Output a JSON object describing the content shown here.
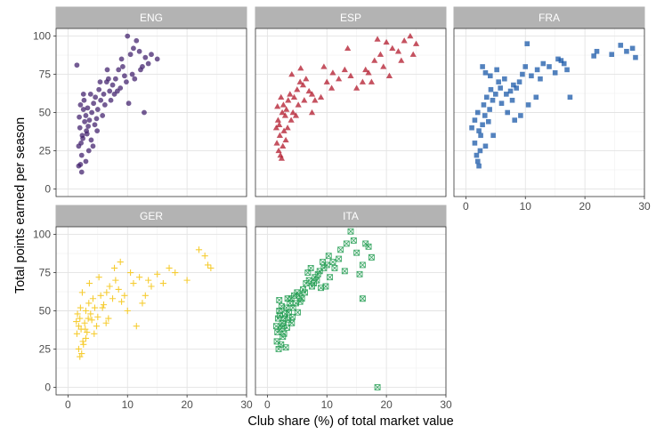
{
  "chart_data": {
    "type": "scatter",
    "layout": "facet_wrap",
    "xlabel": "Club share (%) of total market value",
    "ylabel": "Total points earned per season",
    "xlim": [
      -2,
      30
    ],
    "ylim": [
      -5,
      105
    ],
    "x_ticks": [
      0,
      10,
      20,
      30
    ],
    "y_ticks": [
      0,
      25,
      50,
      75,
      100
    ],
    "grid": true,
    "shared_axes": true,
    "panels": [
      {
        "name": "ENG",
        "shape": "circle",
        "color": "#3f1d6b",
        "points": [
          [
            2.0,
            40
          ],
          [
            2.4,
            35
          ],
          [
            2.8,
            44
          ],
          [
            3.1,
            38
          ],
          [
            1.9,
            47
          ],
          [
            2.6,
            52
          ],
          [
            3.4,
            41
          ],
          [
            2.2,
            30
          ],
          [
            1.8,
            28
          ],
          [
            2.5,
            33
          ],
          [
            3.0,
            48
          ],
          [
            3.6,
            45
          ],
          [
            2.1,
            55
          ],
          [
            2.7,
            58
          ],
          [
            3.2,
            36
          ],
          [
            4.0,
            50
          ],
          [
            4.3,
            56
          ],
          [
            3.8,
            62
          ],
          [
            4.6,
            60
          ],
          [
            5.0,
            52
          ],
          [
            5.2,
            65
          ],
          [
            4.8,
            46
          ],
          [
            3.5,
            25
          ],
          [
            2.3,
            22
          ],
          [
            2.1,
            16
          ],
          [
            1.8,
            15
          ],
          [
            2.3,
            11
          ],
          [
            3.0,
            18
          ],
          [
            4.2,
            28
          ],
          [
            5.5,
            58
          ],
          [
            6.0,
            62
          ],
          [
            6.5,
            70
          ],
          [
            7.0,
            64
          ],
          [
            7.5,
            68
          ],
          [
            8.0,
            72
          ],
          [
            8.5,
            78
          ],
          [
            9.0,
            85
          ],
          [
            9.5,
            74
          ],
          [
            10.0,
            100
          ],
          [
            10.5,
            88
          ],
          [
            11.0,
            92
          ],
          [
            11.5,
            97
          ],
          [
            12.0,
            90
          ],
          [
            12.5,
            80
          ],
          [
            13.0,
            86
          ],
          [
            13.5,
            82
          ],
          [
            14.0,
            88
          ],
          [
            15.0,
            85
          ],
          [
            6.2,
            55
          ],
          [
            7.2,
            58
          ],
          [
            8.8,
            66
          ],
          [
            9.8,
            70
          ],
          [
            10.8,
            75
          ],
          [
            3.3,
            53
          ],
          [
            4.5,
            42
          ],
          [
            5.8,
            48
          ],
          [
            6.8,
            72
          ],
          [
            7.8,
            62
          ],
          [
            8.3,
            64
          ],
          [
            12.8,
            50
          ],
          [
            10.2,
            56
          ],
          [
            2.6,
            62
          ],
          [
            3.9,
            32
          ],
          [
            4.9,
            38
          ],
          [
            1.5,
            81
          ],
          [
            11.2,
            72
          ],
          [
            12.2,
            78
          ],
          [
            9.2,
            80
          ],
          [
            5.4,
            70
          ],
          [
            6.6,
            78
          ]
        ]
      },
      {
        "name": "ESP",
        "shape": "triangle",
        "color": "#b1182b",
        "points": [
          [
            1.5,
            40
          ],
          [
            1.8,
            45
          ],
          [
            2.1,
            35
          ],
          [
            2.5,
            50
          ],
          [
            2.0,
            42
          ],
          [
            2.8,
            38
          ],
          [
            1.6,
            30
          ],
          [
            1.9,
            25
          ],
          [
            2.2,
            22
          ],
          [
            2.4,
            20
          ],
          [
            3.0,
            48
          ],
          [
            3.2,
            52
          ],
          [
            3.5,
            58
          ],
          [
            2.7,
            55
          ],
          [
            3.8,
            62
          ],
          [
            4.0,
            45
          ],
          [
            4.5,
            60
          ],
          [
            5.0,
            65
          ],
          [
            5.5,
            70
          ],
          [
            6.0,
            68
          ],
          [
            6.5,
            72
          ],
          [
            7.0,
            64
          ],
          [
            7.5,
            62
          ],
          [
            8.0,
            58
          ],
          [
            9.0,
            60
          ],
          [
            10.0,
            70
          ],
          [
            11.0,
            76
          ],
          [
            12.0,
            72
          ],
          [
            13.0,
            78
          ],
          [
            14.0,
            74
          ],
          [
            15.0,
            66
          ],
          [
            16.0,
            70
          ],
          [
            17.0,
            76
          ],
          [
            18.0,
            84
          ],
          [
            19.0,
            88
          ],
          [
            20.0,
            96
          ],
          [
            21.0,
            92
          ],
          [
            22.0,
            90
          ],
          [
            23.0,
            97
          ],
          [
            24.0,
            100
          ],
          [
            24.5,
            88
          ],
          [
            25.0,
            95
          ],
          [
            18.5,
            98
          ],
          [
            19.5,
            80
          ],
          [
            22.5,
            84
          ],
          [
            3.4,
            40
          ],
          [
            4.3,
            50
          ],
          [
            5.2,
            55
          ],
          [
            6.2,
            58
          ],
          [
            3.1,
            32
          ],
          [
            2.6,
            28
          ],
          [
            4.8,
            48
          ],
          [
            9.5,
            80
          ],
          [
            10.8,
            66
          ],
          [
            13.5,
            92
          ],
          [
            16.5,
            78
          ],
          [
            17.5,
            70
          ],
          [
            20.5,
            74
          ],
          [
            7.5,
            50
          ],
          [
            4.1,
            75
          ],
          [
            5.6,
            79
          ],
          [
            2.3,
            60
          ],
          [
            1.7,
            54
          ]
        ]
      },
      {
        "name": "FRA",
        "shape": "square",
        "color": "#1958a8",
        "points": [
          [
            1.0,
            40
          ],
          [
            1.5,
            45
          ],
          [
            2.0,
            50
          ],
          [
            2.2,
            38
          ],
          [
            2.5,
            35
          ],
          [
            2.8,
            42
          ],
          [
            3.0,
            55
          ],
          [
            3.2,
            48
          ],
          [
            3.5,
            60
          ],
          [
            3.8,
            44
          ],
          [
            4.0,
            52
          ],
          [
            4.2,
            65
          ],
          [
            4.5,
            58
          ],
          [
            5.0,
            62
          ],
          [
            5.5,
            70
          ],
          [
            6.0,
            56
          ],
          [
            6.5,
            72
          ],
          [
            7.0,
            50
          ],
          [
            7.5,
            64
          ],
          [
            8.0,
            68
          ],
          [
            8.5,
            66
          ],
          [
            9.0,
            70
          ],
          [
            9.5,
            75
          ],
          [
            10.0,
            80
          ],
          [
            11.0,
            74
          ],
          [
            12.0,
            78
          ],
          [
            13.0,
            82
          ],
          [
            14.0,
            80
          ],
          [
            15.0,
            76
          ],
          [
            16.0,
            84
          ],
          [
            17.0,
            78
          ],
          [
            2.0,
            18
          ],
          [
            2.2,
            15
          ],
          [
            1.8,
            22
          ],
          [
            2.4,
            25
          ],
          [
            1.5,
            30
          ],
          [
            3.3,
            28
          ],
          [
            4.6,
            35
          ],
          [
            6.8,
            62
          ],
          [
            7.8,
            58
          ],
          [
            8.2,
            45
          ],
          [
            9.2,
            48
          ],
          [
            10.5,
            55
          ],
          [
            11.8,
            60
          ],
          [
            12.5,
            72
          ],
          [
            17.5,
            60
          ],
          [
            21.5,
            87
          ],
          [
            22.0,
            90
          ],
          [
            24.5,
            88
          ],
          [
            26.0,
            94
          ],
          [
            27.0,
            90
          ],
          [
            28.0,
            92
          ],
          [
            28.5,
            86
          ],
          [
            2.8,
            80
          ],
          [
            3.3,
            76
          ],
          [
            4.1,
            74
          ],
          [
            5.2,
            78
          ],
          [
            5.8,
            66
          ],
          [
            10.3,
            95
          ],
          [
            15.5,
            85
          ],
          [
            16.5,
            82
          ]
        ]
      },
      {
        "name": "GER",
        "shape": "plus",
        "color": "#f5c81e",
        "points": [
          [
            1.5,
            35
          ],
          [
            1.8,
            40
          ],
          [
            2.0,
            45
          ],
          [
            2.2,
            38
          ],
          [
            2.5,
            30
          ],
          [
            2.8,
            42
          ],
          [
            3.0,
            50
          ],
          [
            3.2,
            36
          ],
          [
            3.5,
            55
          ],
          [
            3.8,
            48
          ],
          [
            4.0,
            44
          ],
          [
            4.2,
            58
          ],
          [
            4.5,
            52
          ],
          [
            5.0,
            46
          ],
          [
            5.5,
            60
          ],
          [
            6.0,
            54
          ],
          [
            6.5,
            62
          ],
          [
            7.0,
            66
          ],
          [
            7.5,
            58
          ],
          [
            8.0,
            70
          ],
          [
            8.5,
            64
          ],
          [
            9.0,
            56
          ],
          [
            9.5,
            60
          ],
          [
            10.0,
            50
          ],
          [
            11.0,
            68
          ],
          [
            12.0,
            72
          ],
          [
            13.0,
            60
          ],
          [
            14.0,
            66
          ],
          [
            15.0,
            74
          ],
          [
            16.0,
            68
          ],
          [
            17.0,
            78
          ],
          [
            18.0,
            75
          ],
          [
            20.0,
            70
          ],
          [
            22.0,
            90
          ],
          [
            23.0,
            86
          ],
          [
            23.5,
            80
          ],
          [
            24.0,
            78
          ],
          [
            1.8,
            25
          ],
          [
            2.0,
            20
          ],
          [
            2.3,
            22
          ],
          [
            2.6,
            28
          ],
          [
            3.0,
            32
          ],
          [
            1.6,
            48
          ],
          [
            2.4,
            62
          ],
          [
            3.6,
            68
          ],
          [
            4.8,
            40
          ],
          [
            5.8,
            52
          ],
          [
            6.8,
            45
          ],
          [
            7.8,
            78
          ],
          [
            8.8,
            82
          ],
          [
            10.5,
            75
          ],
          [
            11.5,
            40
          ],
          [
            12.5,
            55
          ],
          [
            13.5,
            70
          ],
          [
            3.4,
            45
          ],
          [
            2.9,
            38
          ],
          [
            4.4,
            35
          ],
          [
            5.2,
            72
          ],
          [
            6.4,
            42
          ],
          [
            2.1,
            52
          ],
          [
            1.4,
            43
          ]
        ]
      },
      {
        "name": "ITA",
        "shape": "square-x",
        "color": "#1f9b4f",
        "points": [
          [
            1.5,
            40
          ],
          [
            1.8,
            45
          ],
          [
            2.0,
            50
          ],
          [
            2.2,
            38
          ],
          [
            2.5,
            42
          ],
          [
            2.8,
            35
          ],
          [
            3.0,
            48
          ],
          [
            3.2,
            52
          ],
          [
            3.5,
            44
          ],
          [
            3.8,
            55
          ],
          [
            4.0,
            58
          ],
          [
            4.2,
            46
          ],
          [
            4.5,
            60
          ],
          [
            5.0,
            62
          ],
          [
            5.5,
            56
          ],
          [
            6.0,
            64
          ],
          [
            6.5,
            68
          ],
          [
            7.0,
            70
          ],
          [
            7.5,
            66
          ],
          [
            8.0,
            72
          ],
          [
            8.5,
            74
          ],
          [
            9.0,
            65
          ],
          [
            9.5,
            78
          ],
          [
            10.0,
            80
          ],
          [
            10.5,
            72
          ],
          [
            11.0,
            82
          ],
          [
            12.0,
            84
          ],
          [
            13.0,
            76
          ],
          [
            14.0,
            102
          ],
          [
            15.0,
            88
          ],
          [
            16.0,
            80
          ],
          [
            16.5,
            94
          ],
          [
            17.0,
            92
          ],
          [
            18.5,
            0
          ],
          [
            1.6,
            30
          ],
          [
            1.9,
            25
          ],
          [
            2.3,
            28
          ],
          [
            2.6,
            33
          ],
          [
            3.1,
            26
          ],
          [
            1.7,
            36
          ],
          [
            2.1,
            47
          ],
          [
            2.4,
            53
          ],
          [
            2.7,
            40
          ],
          [
            3.3,
            39
          ],
          [
            3.6,
            49
          ],
          [
            4.3,
            52
          ],
          [
            4.8,
            55
          ],
          [
            5.3,
            60
          ],
          [
            5.8,
            58
          ],
          [
            6.3,
            62
          ],
          [
            6.8,
            75
          ],
          [
            7.3,
            78
          ],
          [
            7.8,
            68
          ],
          [
            8.3,
            70
          ],
          [
            8.8,
            76
          ],
          [
            9.3,
            82
          ],
          [
            10.3,
            86
          ],
          [
            11.3,
            78
          ],
          [
            12.3,
            90
          ],
          [
            13.3,
            94
          ],
          [
            15.5,
            74
          ],
          [
            16.0,
            58
          ],
          [
            17.5,
            85
          ],
          [
            14.5,
            96
          ],
          [
            2.0,
            57
          ],
          [
            2.9,
            45
          ],
          [
            3.4,
            58
          ],
          [
            4.1,
            42
          ],
          [
            5.1,
            49
          ],
          [
            9.8,
            66
          ]
        ]
      }
    ]
  }
}
